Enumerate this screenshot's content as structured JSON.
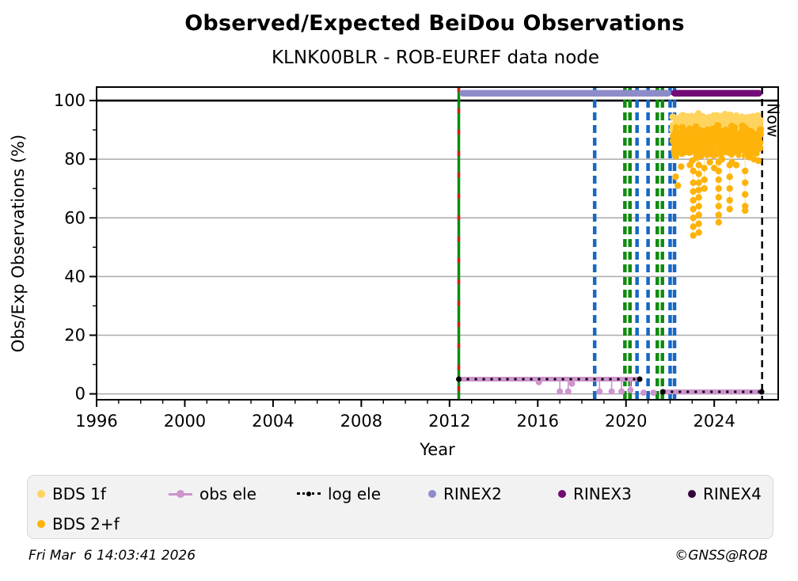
{
  "page": {
    "title": "Observed/Expected BeiDou Observations",
    "subtitle": "KLNK00BLR - ROB-EUREF data node",
    "timestamp": "Fri Mar  6 14:03:41 2026",
    "copyright": "©GNSS@ROB"
  },
  "chart_data": {
    "type": "scatter",
    "title": "Observed/Expected BeiDou Observations",
    "subtitle": "KLNK00BLR - ROB-EUREF data node",
    "xlabel": "Year",
    "ylabel": "Obs/Exp Observations (%)",
    "xlim": [
      1996,
      2026.9
    ],
    "ylim": [
      -2,
      104.6
    ],
    "xticks": [
      1996,
      2000,
      2004,
      2008,
      2012,
      2016,
      2020,
      2024
    ],
    "yticks": [
      0,
      20,
      40,
      60,
      80,
      100
    ],
    "grid": true,
    "reference_line": {
      "y": 100,
      "color": "#000000"
    },
    "now_line": {
      "year": 2026.17,
      "label": "Now",
      "color": "#000000"
    },
    "event_lines": {
      "start_line": {
        "year": 2012.42,
        "solid_color": "#0E8B0E",
        "dash_color": "#CF1F1F"
      },
      "blue_dashed_years": [
        2018.58,
        2020.5,
        2021.0,
        2022.0,
        2022.2
      ],
      "green_dashed_years": [
        2019.95,
        2020.18,
        2021.42,
        2021.65
      ],
      "blue": "#1668C4",
      "green": "#0E8B0E"
    },
    "rinex_bars": [
      {
        "name": "RINEX2",
        "start": 2012.45,
        "end": 2022.05,
        "y": 102.5,
        "color": "#8E8CC8"
      },
      {
        "name": "RINEX3",
        "start": 2022.05,
        "end": 2026.17,
        "y": 102.5,
        "color": "#730B77"
      }
    ],
    "obs_ele": {
      "color": "#CD94CD",
      "segments": [
        {
          "x1": 2012.42,
          "x2": 2020.62,
          "y": 5.0
        },
        {
          "x1": 2021.67,
          "x2": 2026.15,
          "y": 0.7
        }
      ],
      "dips": [
        [
          2016.05,
          4.0
        ],
        [
          2017.0,
          0.8
        ],
        [
          2017.38,
          0.8
        ],
        [
          2017.55,
          3.5
        ],
        [
          2018.8,
          0.8
        ],
        [
          2019.35,
          0.8
        ],
        [
          2019.8,
          0.8
        ],
        [
          2020.2,
          1.3
        ],
        [
          2020.8,
          0.4
        ],
        [
          2021.25,
          0.4
        ]
      ]
    },
    "log_ele": {
      "color": "#000000",
      "segments": [
        {
          "x1": 2012.42,
          "x2": 2020.62,
          "y": 5.0
        },
        {
          "x1": 2021.67,
          "x2": 2026.15,
          "y": 0.7
        }
      ]
    },
    "scatter": {
      "bds_1f": {
        "name": "BDS 1f",
        "color": "#FFD45E",
        "n": 450,
        "x_range": [
          2022.12,
          2026.12
        ],
        "y_center": 91.3,
        "y_spread": 4.4,
        "seed": 7
      },
      "bds_2f": {
        "name": "BDS 2+f",
        "color": "#FEB30A",
        "n": 560,
        "x_range": [
          2022.12,
          2026.12
        ],
        "y_center": 86.0,
        "y_spread": 5.6,
        "seed": 13
      },
      "outlier_columns": [
        {
          "x": 2023.05,
          "ys": [
            76,
            72,
            69,
            66,
            63,
            60,
            57,
            54
          ]
        },
        {
          "x": 2023.3,
          "ys": [
            78,
            75,
            72,
            69.5,
            67,
            64,
            61,
            58,
            55
          ]
        },
        {
          "x": 2023.55,
          "ys": [
            77,
            73,
            70
          ]
        },
        {
          "x": 2024.2,
          "ys": [
            79,
            76,
            73,
            70,
            67,
            64,
            61,
            58.5
          ]
        },
        {
          "x": 2024.7,
          "ys": [
            78,
            74,
            70,
            66,
            63
          ]
        },
        {
          "x": 2025.4,
          "ys": [
            76,
            72,
            68,
            64,
            62.5
          ]
        }
      ],
      "outlier_points": [
        [
          2022.25,
          74
        ],
        [
          2022.35,
          71
        ],
        [
          2022.5,
          77.5
        ],
        [
          2022.9,
          78
        ],
        [
          2023.0,
          79.5
        ],
        [
          2023.2,
          80.5
        ],
        [
          2023.8,
          79
        ],
        [
          2024.0,
          77
        ],
        [
          2024.35,
          80
        ],
        [
          2024.8,
          79
        ],
        [
          2025.0,
          78
        ],
        [
          2025.8,
          80
        ],
        [
          2026.0,
          79.5
        ]
      ],
      "outlier_color": "#FEB30A",
      "connector_color": "#FFE2A0"
    }
  },
  "legend": {
    "items": [
      {
        "label": "BDS 1f",
        "marker": "dot",
        "color": "#FFD45E",
        "row": 0,
        "col": 0
      },
      {
        "label": "obs ele",
        "marker": "line-dot",
        "color": "#CD94CD",
        "row": 0,
        "col": 1
      },
      {
        "label": "log ele",
        "marker": "dotted-line",
        "color": "#000000",
        "row": 0,
        "col": 2
      },
      {
        "label": "RINEX2",
        "marker": "dot",
        "color": "#8E8CC8",
        "row": 0,
        "col": 3
      },
      {
        "label": "RINEX3",
        "marker": "dot",
        "color": "#730B77",
        "row": 0,
        "col": 4
      },
      {
        "label": "RINEX4",
        "marker": "dot",
        "color": "#33063C",
        "row": 0,
        "col": 5
      },
      {
        "label": "BDS 2+f",
        "marker": "dot",
        "color": "#FEB30A",
        "row": 1,
        "col": 0
      }
    ]
  }
}
